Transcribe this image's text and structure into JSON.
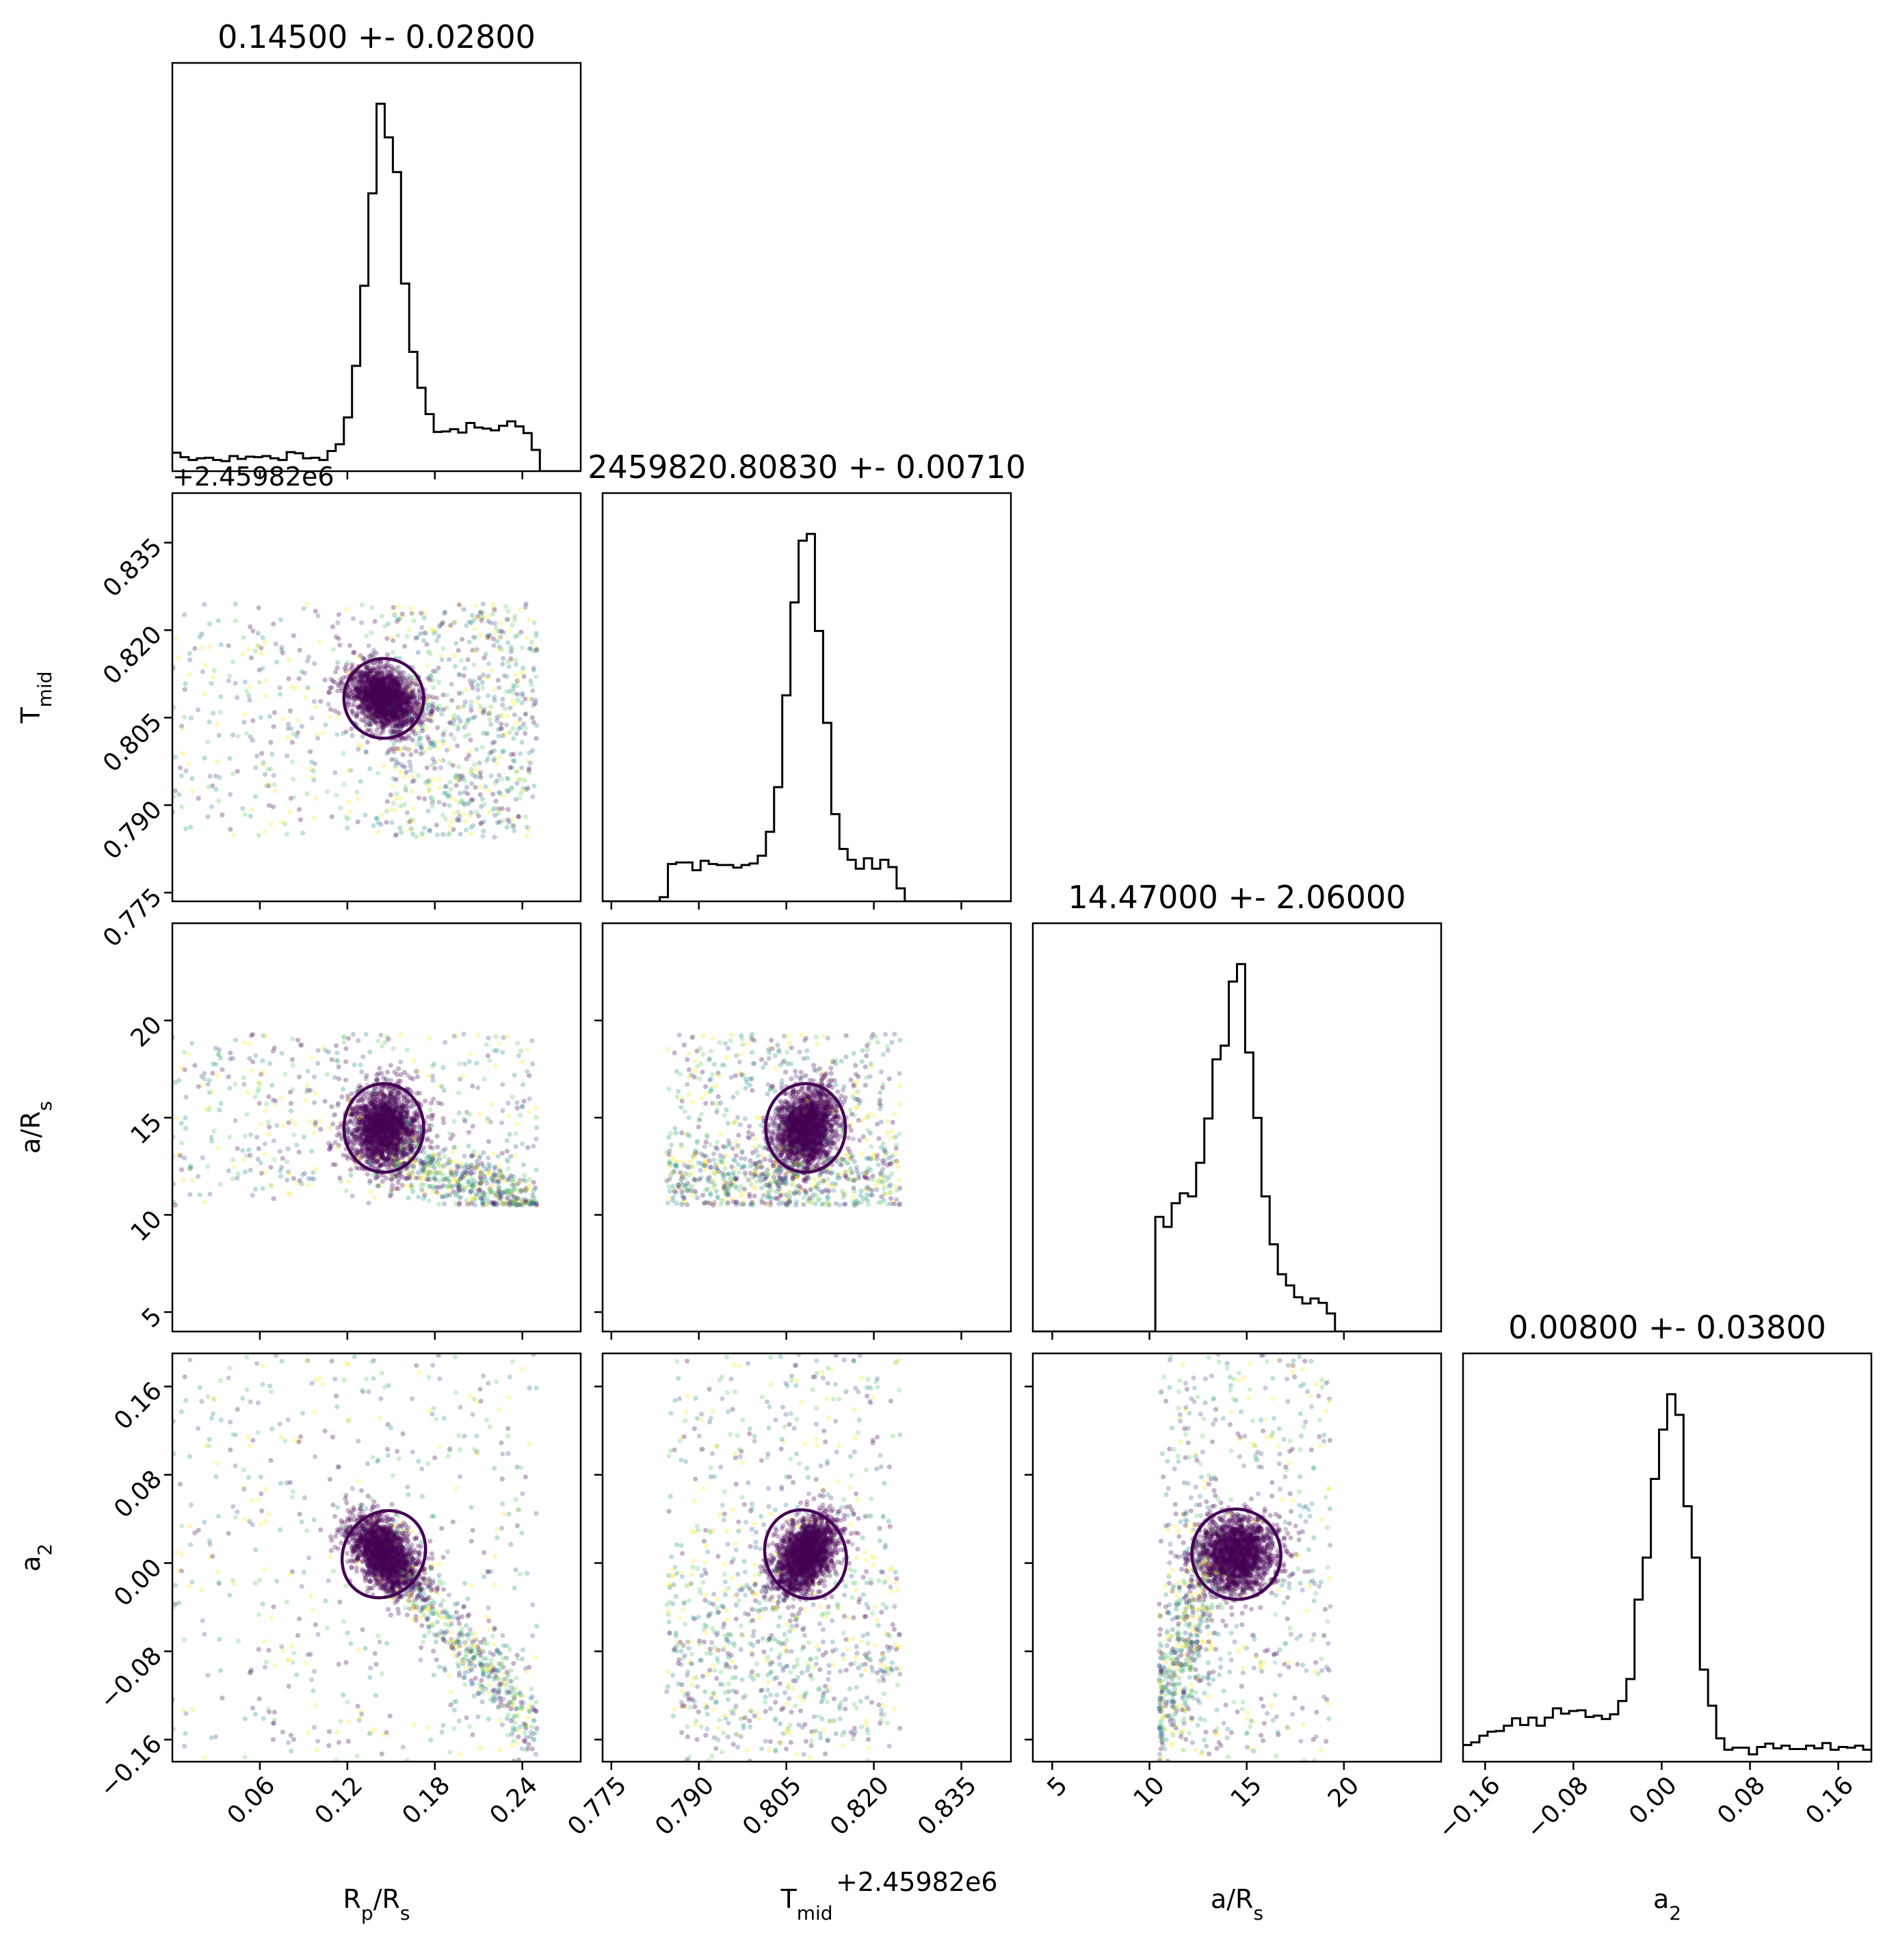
{
  "chart_data": {
    "type": "scatter",
    "kind": "corner-plot",
    "parameters": [
      {
        "name": "R_p/R_s",
        "label_main": "R",
        "label_sub": "p",
        "label_tail": "/R",
        "label_sub2": "s",
        "median": 0.145,
        "range": [
          0.0,
          0.28
        ],
        "ticks": [
          0.06,
          0.12,
          0.18,
          0.24
        ],
        "tick_labels": [
          "0.06",
          "0.12",
          "0.18",
          "0.24"
        ],
        "title": "0.14500 +- 0.02800",
        "sample_range": [
          0.0,
          0.25
        ],
        "sigma": 0.012
      },
      {
        "name": "T_mid",
        "label_main": "T",
        "label_sub": "mid",
        "label_tail": "",
        "label_sub2": "",
        "median": 0.8083,
        "range": [
          0.7735,
          0.8435
        ],
        "ticks": [
          0.775,
          0.79,
          0.805,
          0.82,
          0.835
        ],
        "tick_labels": [
          "0.775",
          "0.790",
          "0.805",
          "0.820",
          "0.835"
        ],
        "title": "2459820.80830 +- 0.00710",
        "offset": "+2.45982e6",
        "sample_range": [
          0.7845,
          0.8245
        ],
        "sigma": 0.003
      },
      {
        "name": "a/R_s",
        "label_main": "a/R",
        "label_sub": "s",
        "label_tail": "",
        "label_sub2": "",
        "median": 14.47,
        "range": [
          4.0,
          25.0
        ],
        "ticks": [
          5,
          10,
          15,
          20
        ],
        "tick_labels": [
          "5",
          "10",
          "15",
          "20"
        ],
        "title": "14.47000 +- 2.06000",
        "sample_range": [
          10.5,
          19.3
        ],
        "sigma": 1.0
      },
      {
        "name": "a_2",
        "label_main": "a",
        "label_sub": "2",
        "label_tail": "",
        "label_sub2": "",
        "median": 0.008,
        "range": [
          -0.18,
          0.19
        ],
        "ticks": [
          -0.16,
          -0.08,
          0.0,
          0.08,
          0.16
        ],
        "tick_labels": [
          "−0.16",
          "−0.08",
          "0.00",
          "0.08",
          "0.16"
        ],
        "title": "0.00800 +- 0.03800",
        "sample_range": [
          -0.18,
          0.19
        ],
        "sigma": 0.018
      }
    ],
    "offset_label": "+2.45982e6",
    "colormap": [
      "#440154",
      "#3b528b",
      "#21918c",
      "#5ec962",
      "#fde725"
    ],
    "contour_colors": {
      "inner": "#440154",
      "outer": "#3b4f8b"
    },
    "point_alpha": 0.3,
    "histogram_color": "#000000"
  }
}
